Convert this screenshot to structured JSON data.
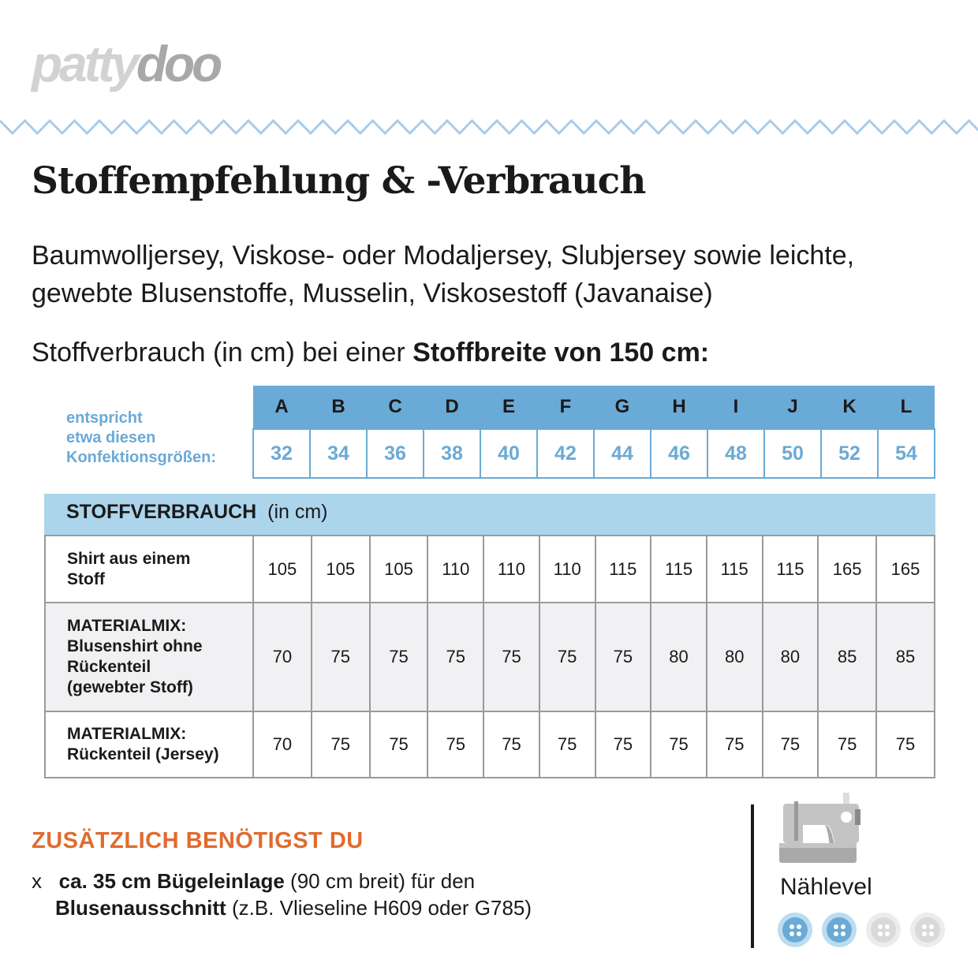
{
  "logo": {
    "part1": "patty",
    "part2": "doo"
  },
  "title": "Stoffempfehlung & -Verbrauch",
  "intro": "Baumwolljersey, Viskose- oder Modaljersey, Slubjersey sowie leichte, gewebte Blusenstoffe, Musselin, Viskosestoff (Javanaise)",
  "usage": {
    "prefix": "Stoffverbrauch (in cm) bei einer ",
    "bold": "Stoffbreite von 150 cm:"
  },
  "size_label": [
    "entspricht",
    "etwa diesen",
    "Konfektionsgrößen:"
  ],
  "letters": [
    "A",
    "B",
    "C",
    "D",
    "E",
    "F",
    "G",
    "H",
    "I",
    "J",
    "K",
    "L"
  ],
  "sizes": [
    "32",
    "34",
    "36",
    "38",
    "40",
    "42",
    "44",
    "46",
    "48",
    "50",
    "52",
    "54"
  ],
  "section": {
    "bold": "STOFFVERBRAUCH",
    "rest": "(in cm)"
  },
  "rows": [
    {
      "label": [
        "Shirt aus einem",
        "Stoff"
      ],
      "values": [
        "105",
        "105",
        "105",
        "110",
        "110",
        "110",
        "115",
        "115",
        "115",
        "115",
        "165",
        "165"
      ]
    },
    {
      "label": [
        "MATERIALMIX:",
        "Blusenshirt ohne",
        "Rückenteil",
        "(gewebter Stoff)"
      ],
      "values": [
        "70",
        "75",
        "75",
        "75",
        "75",
        "75",
        "75",
        "80",
        "80",
        "80",
        "85",
        "85"
      ]
    },
    {
      "label": [
        "MATERIALMIX:",
        "Rückenteil (Jersey)"
      ],
      "values": [
        "70",
        "75",
        "75",
        "75",
        "75",
        "75",
        "75",
        "75",
        "75",
        "75",
        "75",
        "75"
      ]
    }
  ],
  "extra": {
    "title": "ZUSÄTZLICH BENÖTIGST DU",
    "bullet": "x",
    "b1": "ca. 35 cm Bügeleinlage",
    "t1": " (90 cm breit) für den",
    "b2": "Blusenausschnitt",
    "t2": " (z.B. Vlieseline H609 oder G785)"
  },
  "level": {
    "label": "Nählevel",
    "value": 2,
    "max": 4,
    "on_color": "#6aaad6",
    "off_color": "#d9d9d9"
  },
  "colors": {
    "accent": "#6aaad6",
    "light": "#acd5ec",
    "orange": "#e06b2e"
  }
}
